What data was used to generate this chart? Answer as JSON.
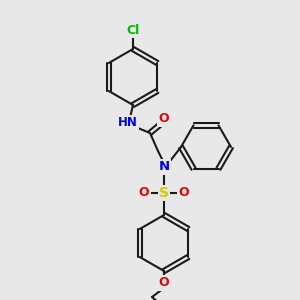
{
  "background_color": "#e8e8e8",
  "bond_color": "#1a1a1a",
  "atom_colors": {
    "N": "#0000ee",
    "O": "#ee0000",
    "S": "#cccc00",
    "Cl": "#00bb00",
    "C": "#1a1a1a"
  },
  "figsize": [
    3.0,
    3.0
  ],
  "dpi": 100
}
